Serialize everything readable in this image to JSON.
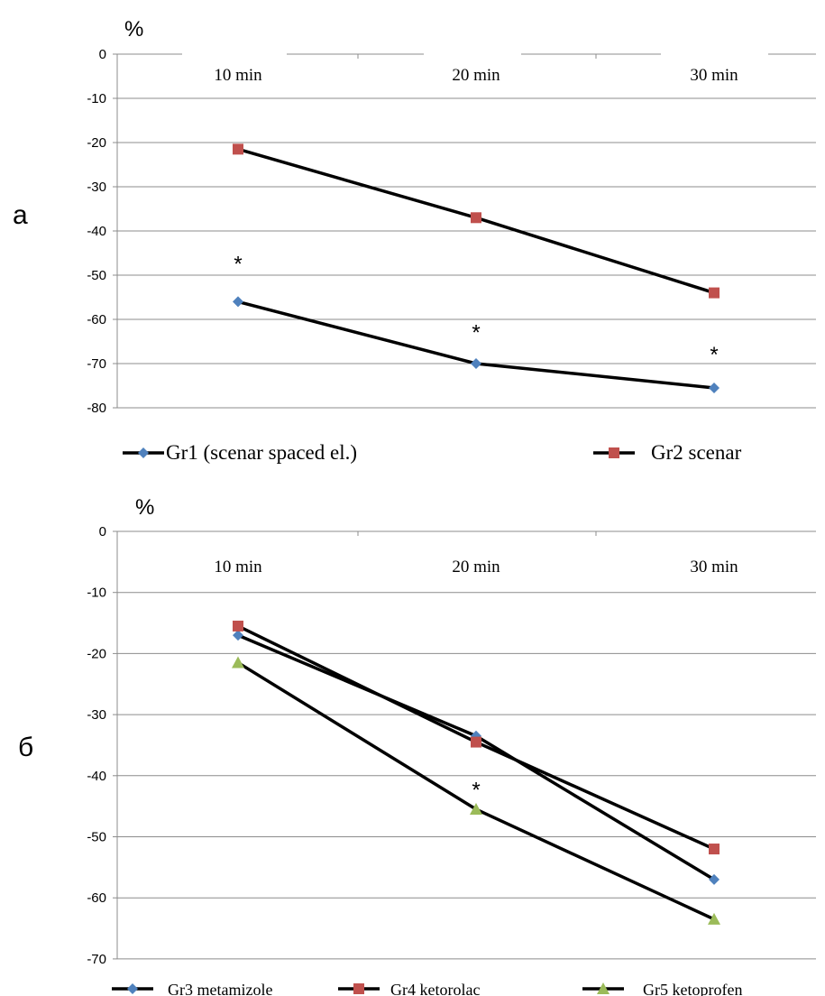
{
  "chart_data": [
    {
      "type": "line",
      "panel_label": "а",
      "unit_label": "%",
      "categories": [
        "10 min",
        "20 min",
        "30 min"
      ],
      "yticks": [
        0,
        -10,
        -20,
        -30,
        -40,
        -50,
        -60,
        -70,
        -80
      ],
      "ylim": [
        -80,
        0
      ],
      "grid": true,
      "legend_position": "bottom",
      "series": [
        {
          "name": "Gr1 (scenar spaced el.)",
          "marker": "diamond",
          "color": "#4F81BD",
          "values": [
            -56,
            -70,
            -75.5
          ]
        },
        {
          "name": "Gr2 scenar",
          "marker": "square",
          "color": "#C0504D",
          "values": [
            -21.5,
            -37,
            -54
          ]
        }
      ],
      "annotations": [
        {
          "text": "*",
          "category": "10 min",
          "y": -47
        },
        {
          "text": "*",
          "category": "20 min",
          "y": -62.5
        },
        {
          "text": "*",
          "category": "30 min",
          "y": -67.5
        }
      ]
    },
    {
      "type": "line",
      "panel_label": "б",
      "unit_label": "%",
      "categories": [
        "10 min",
        "20 min",
        "30 min"
      ],
      "yticks": [
        0,
        -10,
        -20,
        -30,
        -40,
        -50,
        -60,
        -70
      ],
      "ylim": [
        -70,
        0
      ],
      "grid": true,
      "legend_position": "bottom",
      "series": [
        {
          "name": "Gr3 metamizole",
          "marker": "diamond",
          "color": "#4F81BD",
          "values": [
            -17,
            -33.5,
            -57
          ]
        },
        {
          "name": "Gr4 ketorolac",
          "marker": "square",
          "color": "#C0504D",
          "values": [
            -15.5,
            -34.5,
            -52
          ]
        },
        {
          "name": "Gr5 ketoprofen",
          "marker": "triangle",
          "color": "#9BBB59",
          "values": [
            -21.5,
            -45.5,
            -63.5
          ]
        }
      ],
      "annotations": [
        {
          "text": "*",
          "category": "20 min",
          "y": -42
        }
      ]
    }
  ]
}
